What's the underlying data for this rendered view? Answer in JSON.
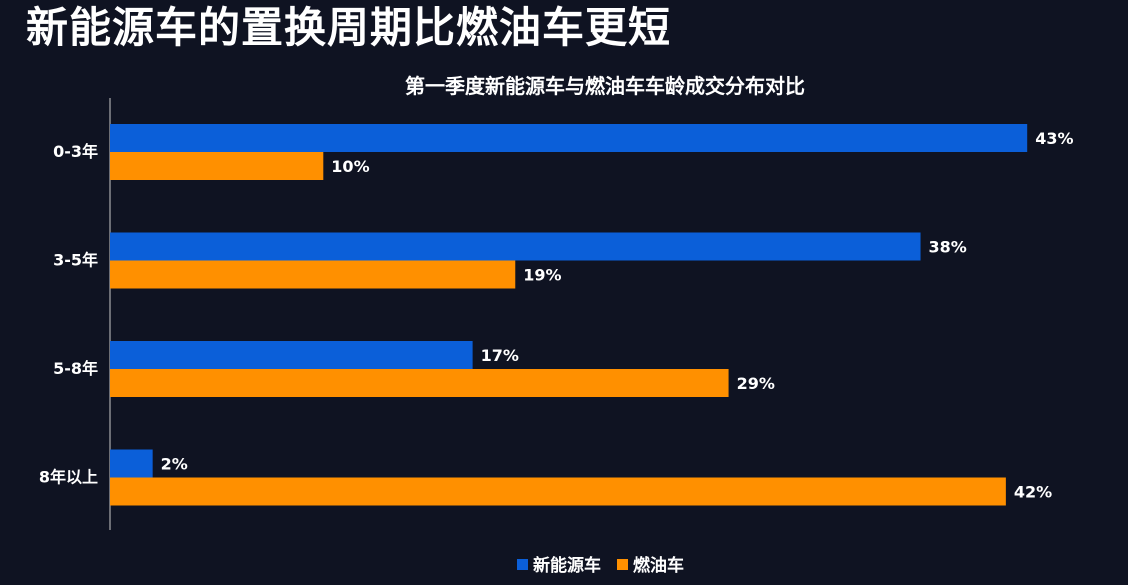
{
  "page": {
    "headline": "新能源车的置换周期比燃油车更短"
  },
  "chart_data": {
    "type": "bar",
    "orientation": "horizontal",
    "title": "第一季度新能源车与燃油车车龄成交分布对比",
    "categories": [
      "0-3年",
      "3-5年",
      "5-8年",
      "8年以上"
    ],
    "series": [
      {
        "name": "新能源车",
        "values": [
          43,
          38,
          17,
          2
        ],
        "labels": [
          "43%",
          "38%",
          "17%",
          "2%"
        ],
        "color": "#0b5fd9"
      },
      {
        "name": "燃油车",
        "values": [
          10,
          19,
          29,
          42
        ],
        "labels": [
          "10%",
          "19%",
          "29%",
          "42%"
        ],
        "color": "#ff9000"
      }
    ],
    "xlim": [
      0,
      45
    ],
    "grid": false,
    "legend": "bottom-center"
  }
}
